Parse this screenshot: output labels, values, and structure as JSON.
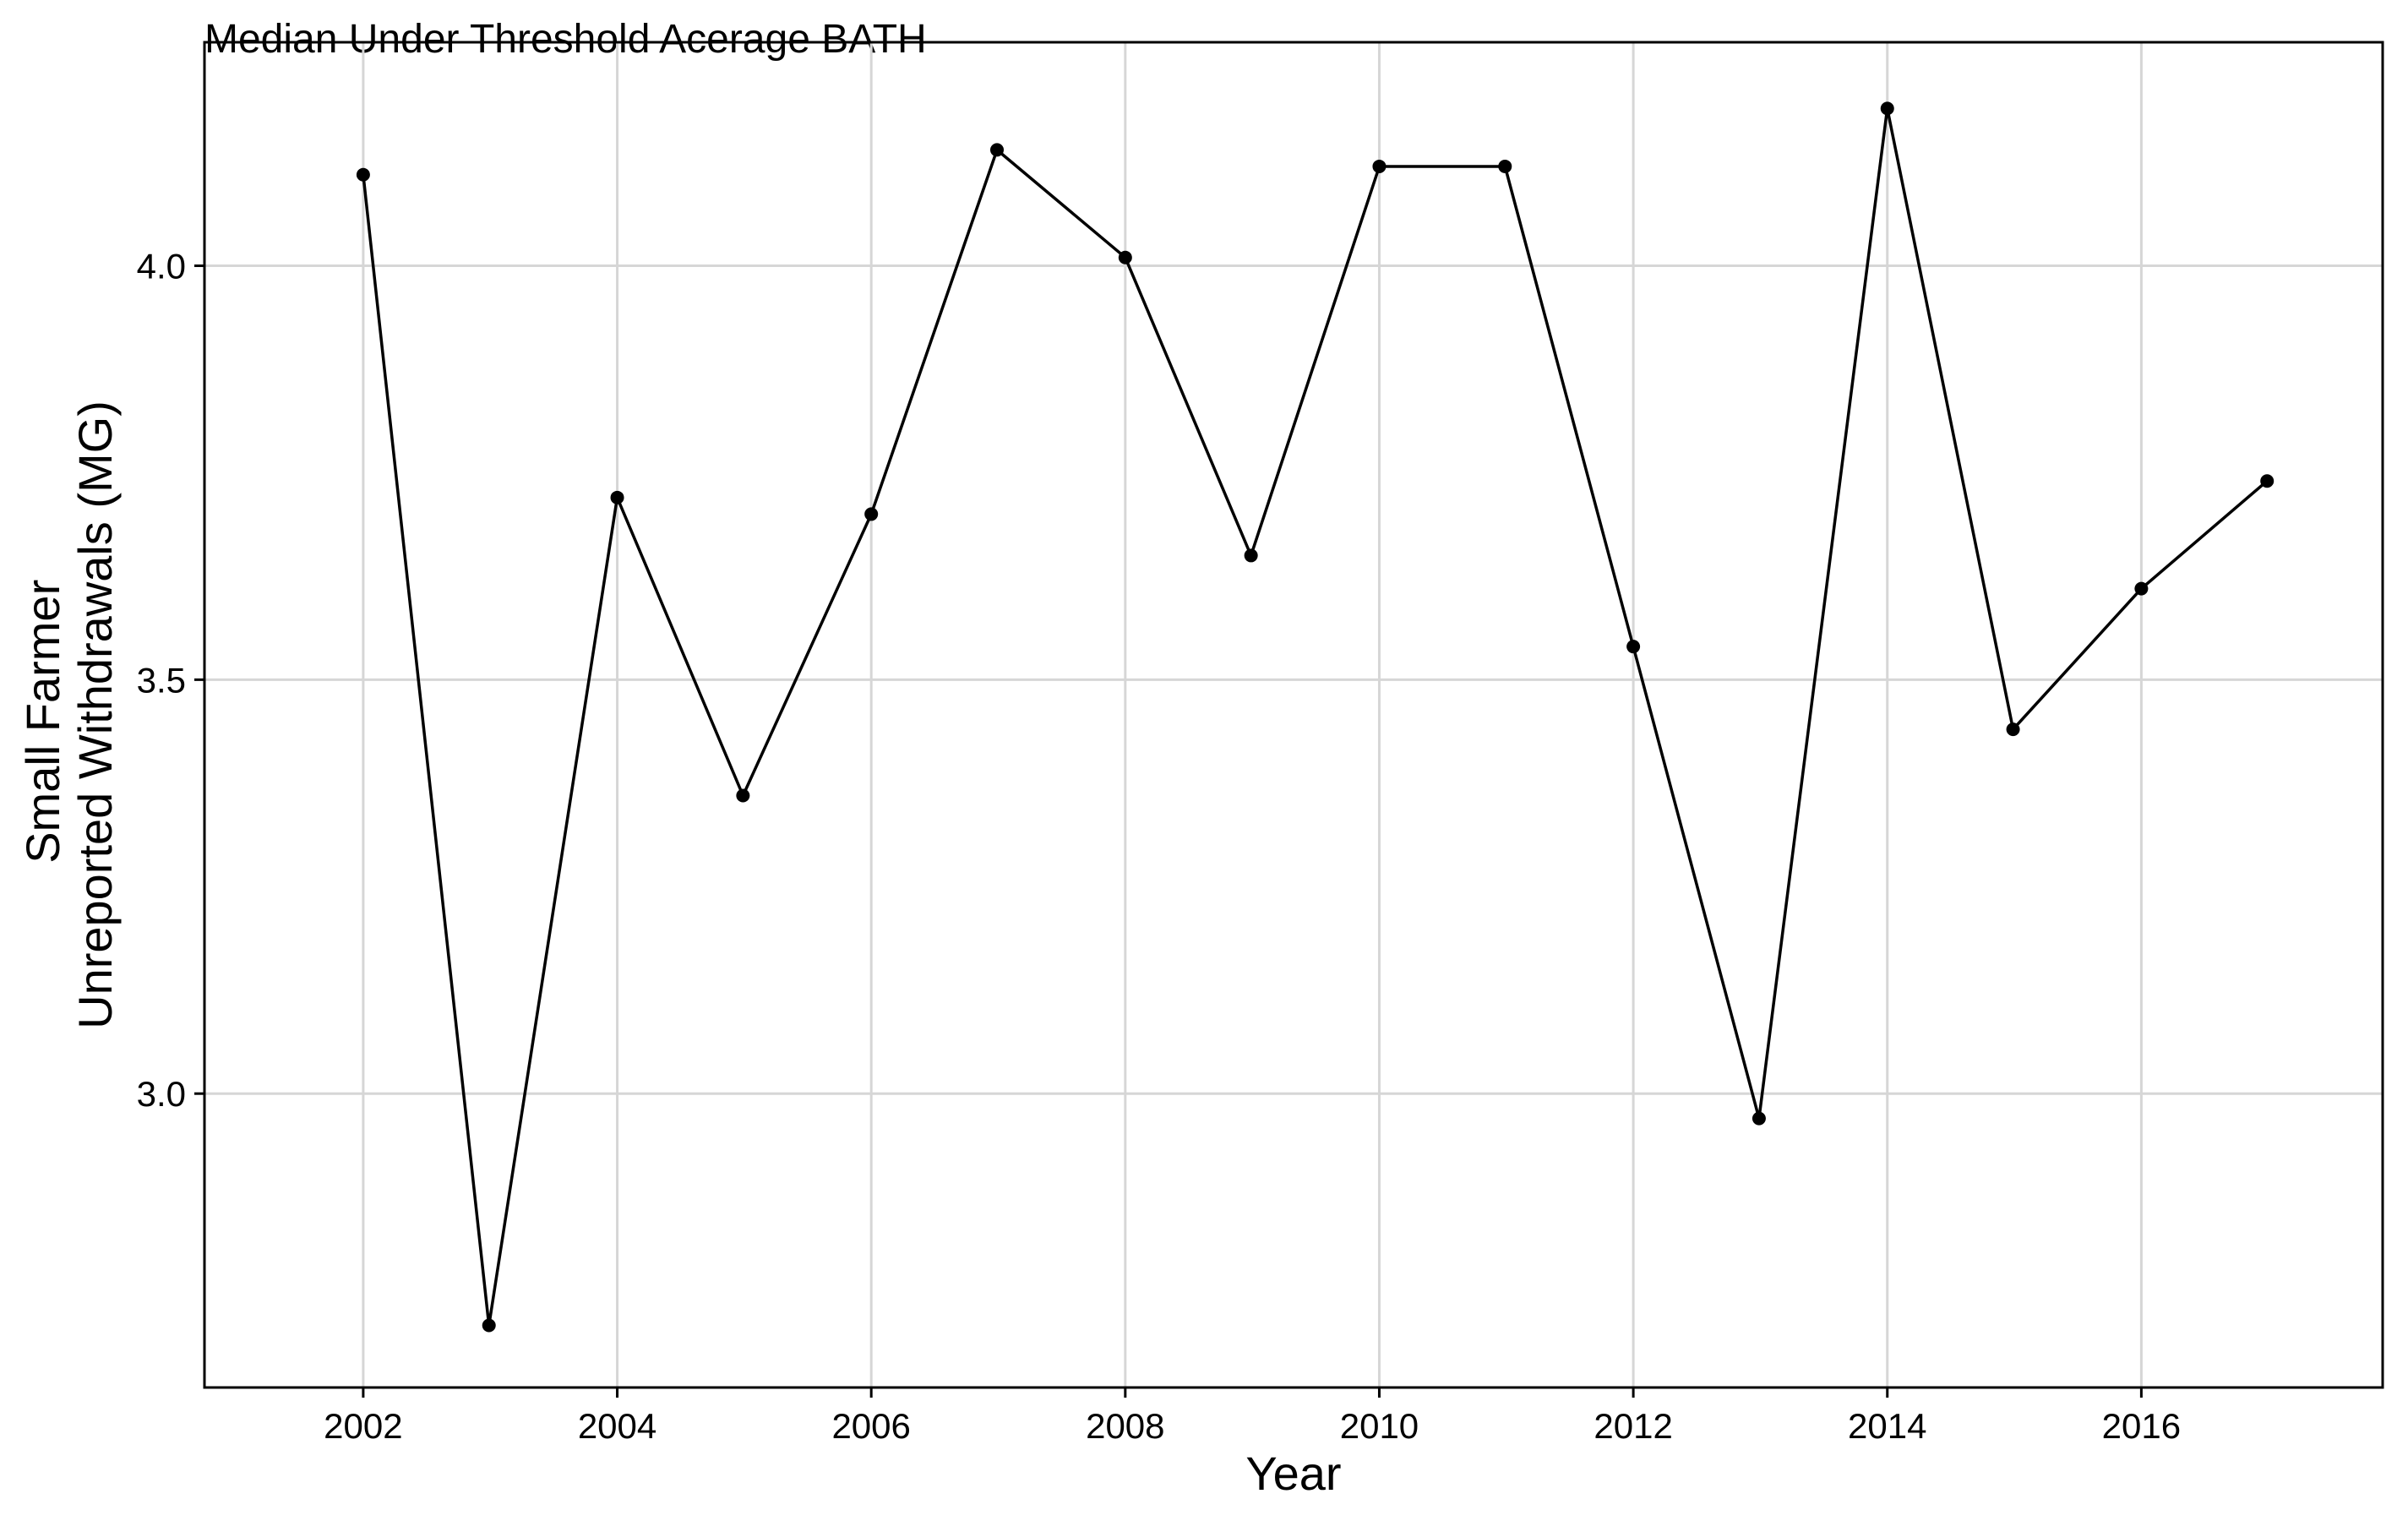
{
  "chart_data": {
    "type": "line",
    "title": "Median Under Threshold Acerage BATH",
    "xlabel": "Year",
    "ylabel_lines": [
      "Small Farmer",
      "Unreported Withdrawals (MG)"
    ],
    "x_ticks": [
      2002,
      2004,
      2006,
      2008,
      2010,
      2012,
      2014,
      2016
    ],
    "y_ticks": [
      3.0,
      3.5,
      4.0
    ],
    "y_tick_labels": [
      "3.0",
      "3.5",
      "4.0"
    ],
    "xlim": [
      2000.75,
      2017.9
    ],
    "ylim": [
      2.645,
      4.27
    ],
    "grid": true,
    "legend": "none",
    "series": [
      {
        "x": [
          2002.0,
          2002.99,
          2004.0,
          2004.99,
          2006.0,
          2006.99,
          2008.0,
          2008.99,
          2010.0,
          2010.99,
          2012.0,
          2012.99,
          2014.0,
          2014.99,
          2016.0,
          2016.99
        ],
        "y": [
          4.11,
          2.72,
          3.72,
          3.36,
          3.7,
          4.14,
          4.01,
          3.65,
          4.12,
          4.12,
          3.54,
          2.97,
          4.19,
          3.44,
          3.61,
          3.74
        ],
        "color": "#000000"
      }
    ]
  }
}
